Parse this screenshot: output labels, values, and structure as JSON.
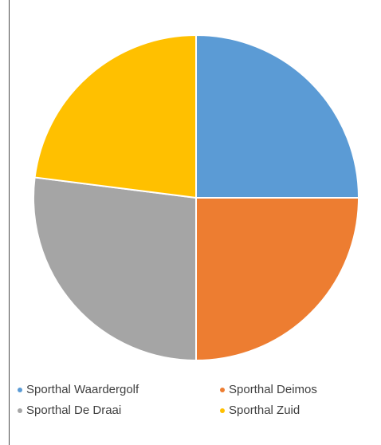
{
  "chart_data": {
    "type": "pie",
    "categories": [
      "Sporthal Waardergolf",
      "Sporthal Deimos",
      "Sporthal De Draai",
      "Sporthal Zuid"
    ],
    "values": [
      25,
      25,
      27,
      23
    ],
    "colors": [
      "#5b9bd5",
      "#ed7d31",
      "#a5a5a5",
      "#ffc000"
    ],
    "start_angle_deg": 0,
    "direction": "clockwise",
    "legend_position": "bottom",
    "title": ""
  }
}
